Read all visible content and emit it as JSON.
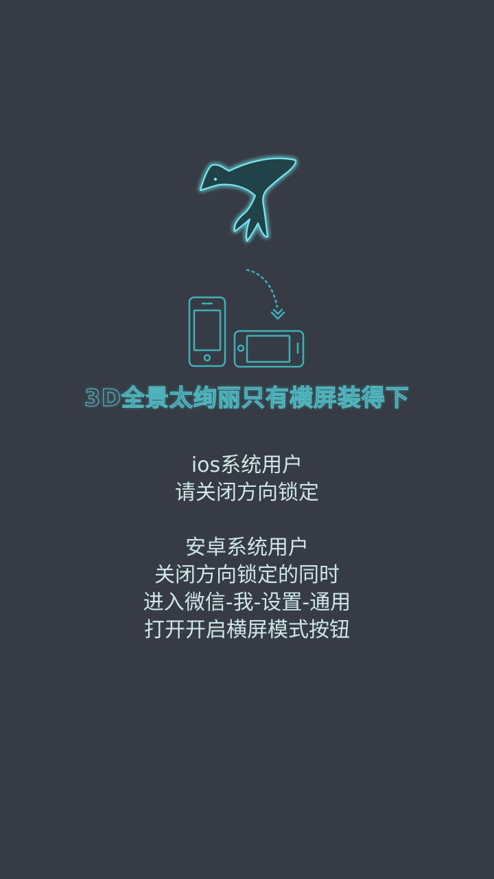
{
  "logo": {
    "icon": "whale-fish-logo-icon",
    "glow_color": "#5ee0e6"
  },
  "rotate_graphic": {
    "portrait_icon": "phone-portrait-icon",
    "landscape_icon": "phone-landscape-icon",
    "arrow_icon": "curved-rotate-arrow-icon",
    "color": "#3fb2b8"
  },
  "headline": "3D全景太绚丽只有横屏装得下",
  "ios_section": {
    "title": "ios系统用户",
    "line1": "请关闭方向锁定"
  },
  "android_section": {
    "title": "安卓系统用户",
    "line1": "关闭方向锁定的同时",
    "line2": "进入微信-我-设置-通用",
    "line3": "打开开启横屏模式按钮"
  }
}
